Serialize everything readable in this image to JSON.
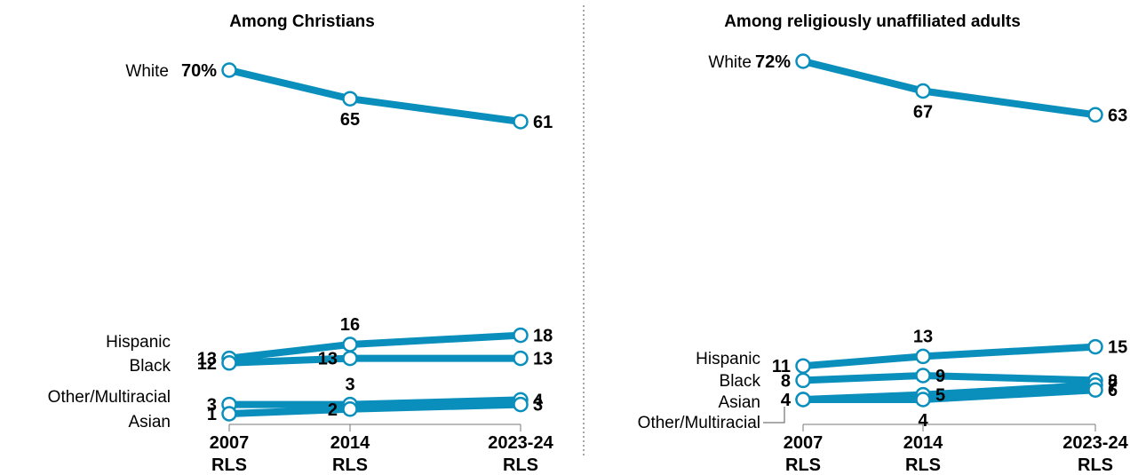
{
  "chart_data": [
    {
      "type": "line",
      "title": "Among Christians",
      "x": [
        "2007 RLS",
        "2014 RLS",
        "2023-24 RLS"
      ],
      "x_ticks": [
        [
          "2007",
          "RLS"
        ],
        [
          "2014",
          "RLS"
        ],
        [
          "2023-24",
          "RLS"
        ]
      ],
      "unit": "%",
      "series": [
        {
          "name": "White",
          "values": [
            70,
            65,
            61
          ]
        },
        {
          "name": "Hispanic",
          "values": [
            13,
            16,
            18
          ]
        },
        {
          "name": "Black",
          "values": [
            12,
            13,
            13
          ]
        },
        {
          "name": "Other/Multiracial",
          "values": [
            3,
            3,
            4
          ]
        },
        {
          "name": "Asian",
          "values": [
            1,
            2,
            3
          ]
        }
      ]
    },
    {
      "type": "line",
      "title": "Among religiously unaffiliated adults",
      "x": [
        "2007 RLS",
        "2014 RLS",
        "2023-24 RLS"
      ],
      "x_ticks": [
        [
          "2007",
          "RLS"
        ],
        [
          "2014",
          "RLS"
        ],
        [
          "2023-24",
          "RLS"
        ]
      ],
      "unit": "%",
      "series": [
        {
          "name": "White",
          "values": [
            72,
            67,
            63
          ]
        },
        {
          "name": "Hispanic",
          "values": [
            11,
            13,
            15
          ]
        },
        {
          "name": "Black",
          "values": [
            8,
            9,
            8
          ]
        },
        {
          "name": "Asian",
          "values": [
            4,
            5,
            7
          ]
        },
        {
          "name": "Other/Multiracial",
          "values": [
            4,
            4,
            6
          ]
        }
      ]
    }
  ],
  "colors": {
    "line": "#0a8fbd",
    "marker_fill": "#ffffff"
  }
}
